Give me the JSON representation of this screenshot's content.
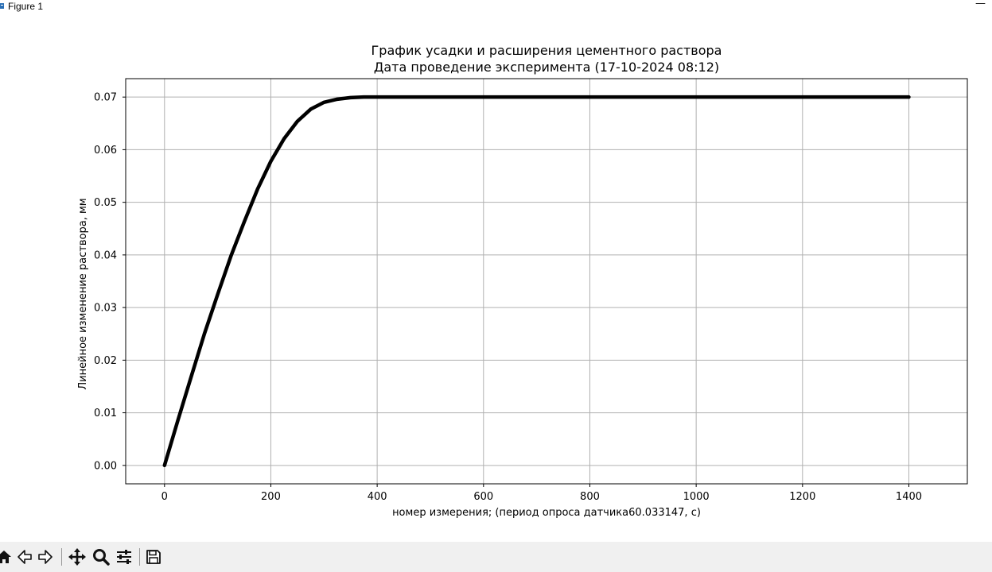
{
  "window": {
    "title": "Figure 1",
    "minimize_glyph": "—"
  },
  "toolbar": {
    "buttons": [
      {
        "icon": "home-icon"
      },
      {
        "icon": "back-icon"
      },
      {
        "icon": "forward-icon"
      },
      {
        "icon": "pan-icon"
      },
      {
        "icon": "zoom-icon"
      },
      {
        "icon": "configure-subplots-icon"
      },
      {
        "icon": "save-icon"
      }
    ]
  },
  "chart_data": {
    "type": "line",
    "title": "График усадки и расширения цементного раствора",
    "subtitle": "Дата проведение эксперимента (17-10-2024 08:12)",
    "xlabel": "номер измерения; (период опроса датчика60.033147, с)",
    "ylabel": "Линейное изменение раствора,  мм",
    "xlim": [
      -73,
      1510
    ],
    "ylim": [
      -0.0035,
      0.0735
    ],
    "xticks": [
      "0",
      "200",
      "400",
      "600",
      "800",
      "1000",
      "1200",
      "1400"
    ],
    "yticks": [
      "0.00",
      "0.01",
      "0.02",
      "0.03",
      "0.04",
      "0.05",
      "0.06",
      "0.07"
    ],
    "grid": true,
    "line_color": "#000000",
    "series": [
      {
        "x": [
          0,
          25,
          50,
          75,
          100,
          125,
          150,
          175,
          200,
          225,
          250,
          275,
          300,
          325,
          350,
          375,
          400,
          500,
          600,
          700,
          800,
          900,
          1000,
          1100,
          1200,
          1300,
          1400
        ],
        "values": [
          0,
          0.0085,
          0.0168,
          0.025,
          0.0325,
          0.0398,
          0.0463,
          0.0525,
          0.0578,
          0.0621,
          0.0654,
          0.0677,
          0.069,
          0.0696,
          0.0699,
          0.07,
          0.07,
          0.07,
          0.07,
          0.07,
          0.07,
          0.07,
          0.07,
          0.07,
          0.07,
          0.07,
          0.07
        ]
      }
    ]
  }
}
